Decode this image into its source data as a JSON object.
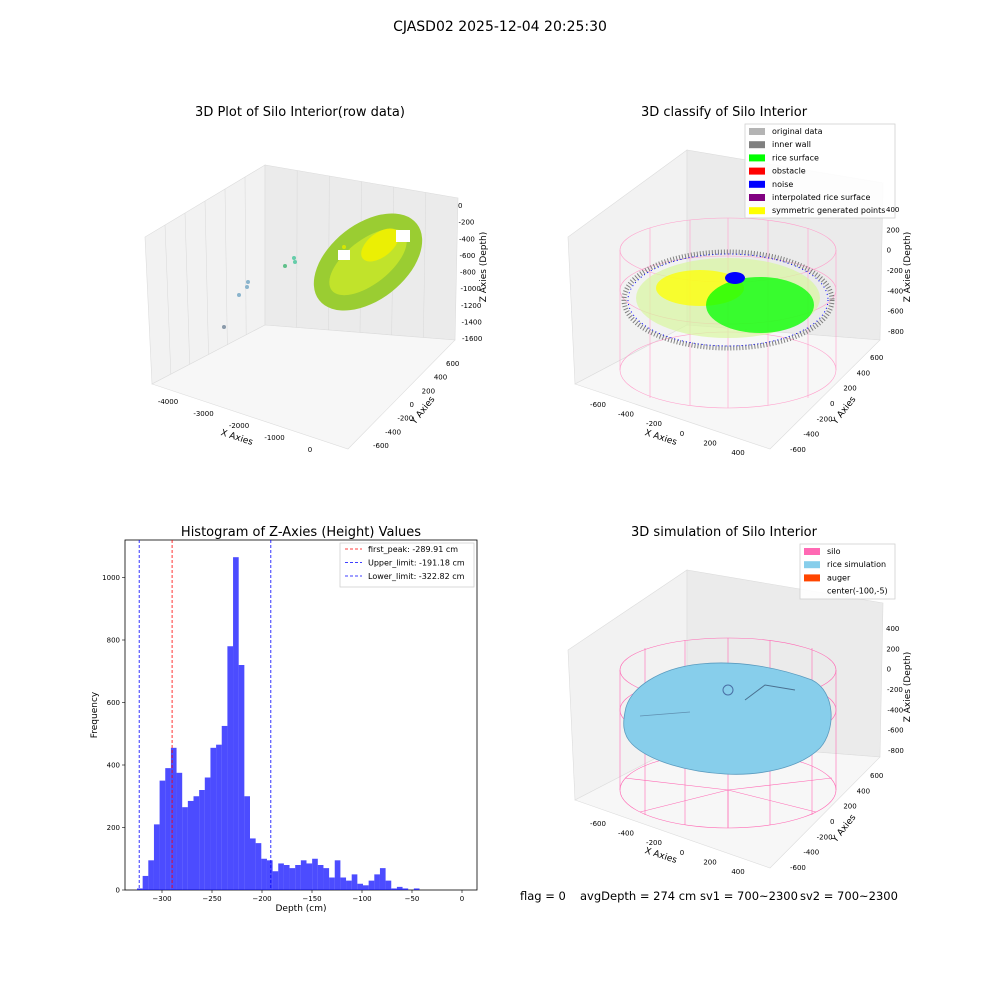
{
  "figure": {
    "suptitle": "CJASD02 2025-12-04 20:25:30",
    "footer": {
      "flag": "flag = 0",
      "avg_depth": "avgDepth = 274 cm",
      "sv1": "sv1 = 700~2300",
      "sv2": "sv2 = 700~2300"
    }
  },
  "panel1": {
    "title": "3D Plot of Silo Interior(row data)",
    "xlabel": "X Axies",
    "ylabel": "Y Axies",
    "zlabel": "Z Axies (Depth)",
    "xticks": [
      "-4000",
      "-3000",
      "-2000",
      "-1000",
      "0"
    ],
    "yticks": [
      "-600",
      "-400",
      "-200",
      "0",
      "200",
      "400",
      "600"
    ],
    "zticks": [
      "0",
      "-200",
      "-400",
      "-600",
      "-800",
      "-1000",
      "-1200",
      "-1400",
      "-1600"
    ]
  },
  "panel2": {
    "title": "3D classify of Silo Interior",
    "xlabel": "X Axies",
    "ylabel": "Y Axies",
    "zlabel": "Z Axies (Depth)",
    "xticks": [
      "-600",
      "-400",
      "-200",
      "0",
      "200",
      "400"
    ],
    "yticks": [
      "-600",
      "-400",
      "-200",
      "0",
      "200",
      "400",
      "600"
    ],
    "zticks": [
      "400",
      "200",
      "0",
      "-200",
      "-400",
      "-600",
      "-800"
    ],
    "legend": [
      {
        "label": "original data",
        "color": "#b4b4b4"
      },
      {
        "label": "inner wall",
        "color": "#808080"
      },
      {
        "label": "rice surface",
        "color": "#00ff00"
      },
      {
        "label": "obstacle",
        "color": "#ff0000"
      },
      {
        "label": "noise",
        "color": "#0000ff"
      },
      {
        "label": "interpolated rice surface",
        "color": "#800080"
      },
      {
        "label": "symmetric generated points",
        "color": "#ffff00"
      }
    ]
  },
  "panel4": {
    "title": "3D simulation of Silo Interior",
    "xlabel": "X Axies",
    "ylabel": "Y Axies",
    "zlabel": "Z Axies (Depth)",
    "xticks": [
      "-600",
      "-400",
      "-200",
      "0",
      "200",
      "400"
    ],
    "yticks": [
      "-600",
      "-400",
      "-200",
      "0",
      "200",
      "400",
      "600"
    ],
    "zticks": [
      "400",
      "200",
      "0",
      "-200",
      "-400",
      "-600",
      "-800"
    ],
    "legend": [
      {
        "label": "silo",
        "color": "#ff69b4"
      },
      {
        "label": "rice simulation",
        "color": "#87ceeb"
      },
      {
        "label": "auger",
        "color": "#ff4500"
      },
      {
        "label": "center(-100,-5)",
        "color": ""
      }
    ]
  },
  "chart_data": [
    {
      "type": "histogram",
      "title": "Histogram of Z-Axies (Height) Values",
      "xlabel": "Depth (cm)",
      "ylabel": "Frequency",
      "bar_color": "#0000ff",
      "bin_start": -325,
      "bin_width": 5.65,
      "counts": [
        5,
        45,
        95,
        210,
        350,
        390,
        455,
        375,
        265,
        285,
        300,
        320,
        360,
        455,
        465,
        525,
        780,
        1065,
        720,
        300,
        165,
        150,
        100,
        95,
        60,
        85,
        80,
        70,
        80,
        95,
        85,
        100,
        80,
        70,
        40,
        95,
        40,
        30,
        50,
        20,
        15,
        30,
        50,
        70,
        30,
        5,
        10,
        5,
        0,
        5
      ],
      "xlim": [
        -337,
        15
      ],
      "ylim": [
        0,
        1120
      ],
      "xticks": [
        -300,
        -250,
        -200,
        -150,
        -100,
        -50,
        0
      ],
      "yticks": [
        0,
        200,
        400,
        600,
        800,
        1000
      ],
      "vlines": [
        {
          "label": "first_peak: -289.91 cm",
          "x": -289.91,
          "color": "#ff0000"
        },
        {
          "label": "Upper_limit: -191.18 cm",
          "x": -191.18,
          "color": "#0000ff"
        },
        {
          "label": "Lower_limit: -322.82 cm",
          "x": -322.82,
          "color": "#0000ff"
        }
      ],
      "legend": "top-right"
    }
  ]
}
